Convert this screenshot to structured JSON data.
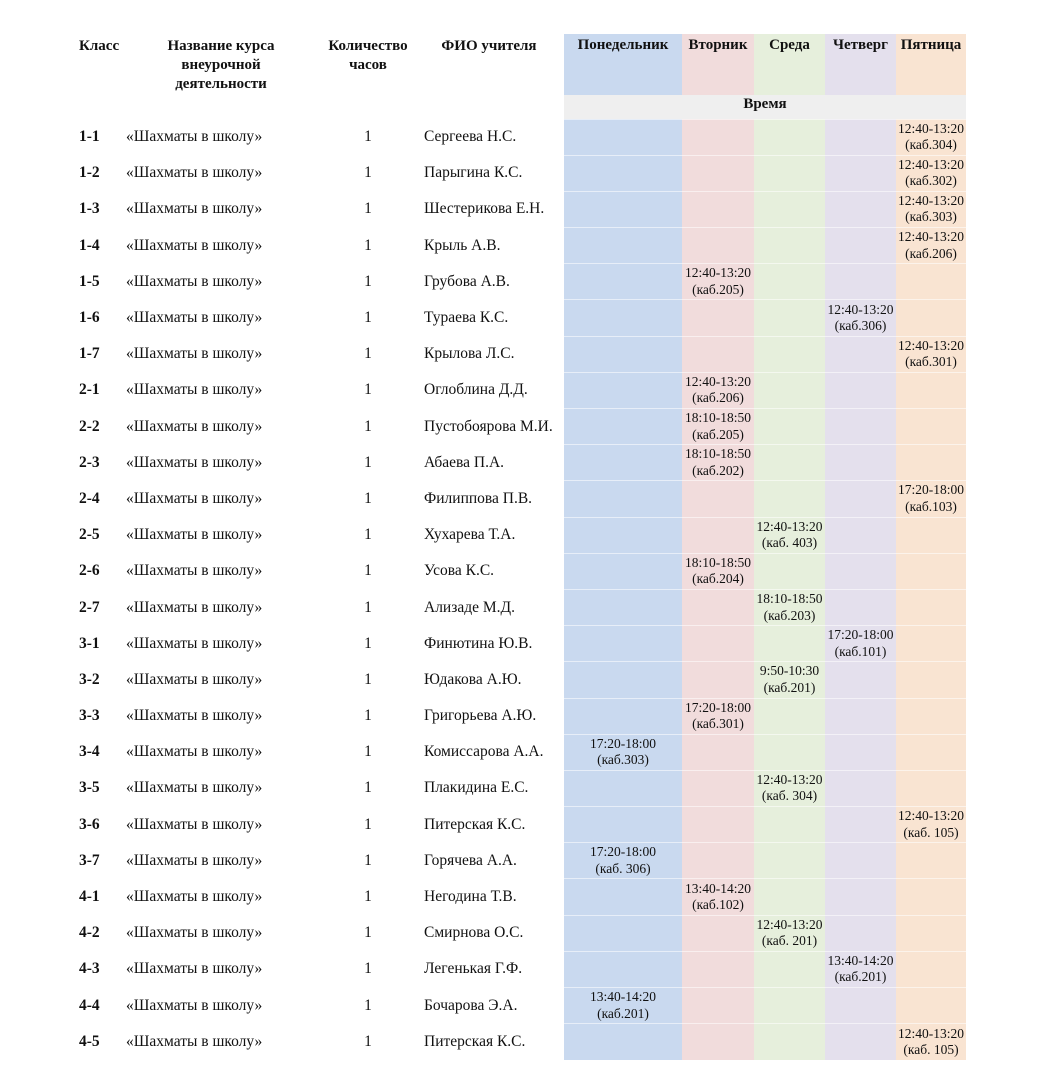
{
  "headers": {
    "class": "Класс",
    "course": [
      "Название курса",
      "внеурочной",
      "деятельности"
    ],
    "hours": [
      "Количество",
      "часов"
    ],
    "teacher": "ФИО учителя",
    "days": [
      "Понедельник",
      "Вторник",
      "Среда",
      "Четверг",
      "Пятница"
    ],
    "time": "Время"
  },
  "colors": {
    "monday": "#c9d9ef",
    "tuesday": "#f1dcdc",
    "wednesday": "#e6efdc",
    "thursday": "#e4e0ed",
    "friday": "#f9e4d2"
  },
  "rows": [
    {
      "class": "1-1",
      "course": "«Шахматы в школу»",
      "hours": "1",
      "teacher": "Сергеева Н.С.",
      "day": 4,
      "time": "12:40-13:20",
      "room": "(каб.304)"
    },
    {
      "class": "1-2",
      "course": "«Шахматы в школу»",
      "hours": "1",
      "teacher": "Парыгина К.С.",
      "day": 4,
      "time": "12:40-13:20",
      "room": "(каб.302)"
    },
    {
      "class": "1-3",
      "course": "«Шахматы в школу»",
      "hours": "1",
      "teacher": "Шестерикова Е.Н.",
      "day": 4,
      "time": "12:40-13:20",
      "room": "(каб.303)"
    },
    {
      "class": "1-4",
      "course": "«Шахматы в школу»",
      "hours": "1",
      "teacher": "Крыль А.В.",
      "day": 4,
      "time": "12:40-13:20",
      "room": "(каб.206)"
    },
    {
      "class": "1-5",
      "course": "«Шахматы в школу»",
      "hours": "1",
      "teacher": "Грубова А.В.",
      "day": 1,
      "time": "12:40-13:20",
      "room": "(каб.205)"
    },
    {
      "class": "1-6",
      "course": "«Шахматы в школу»",
      "hours": "1",
      "teacher": "Тураева К.С.",
      "day": 3,
      "time": "12:40-13:20",
      "room": "(каб.306)"
    },
    {
      "class": "1-7",
      "course": "«Шахматы в школу»",
      "hours": "1",
      "teacher": "Крылова Л.С.",
      "day": 4,
      "time": "12:40-13:20",
      "room": "(каб.301)"
    },
    {
      "class": "2-1",
      "course": "«Шахматы в школу»",
      "hours": "1",
      "teacher": "Оглоблина Д.Д.",
      "day": 1,
      "time": "12:40-13:20",
      "room": "(каб.206)"
    },
    {
      "class": "2-2",
      "course": "«Шахматы в школу»",
      "hours": "1",
      "teacher": "Пустобоярова М.И.",
      "day": 1,
      "time": "18:10-18:50",
      "room": "(каб.205)"
    },
    {
      "class": "2-3",
      "course": "«Шахматы в школу»",
      "hours": "1",
      "teacher": "Абаева П.А.",
      "day": 1,
      "time": "18:10-18:50",
      "room": "(каб.202)"
    },
    {
      "class": "2-4",
      "course": "«Шахматы в школу»",
      "hours": "1",
      "teacher": "Филиппова П.В.",
      "day": 4,
      "time": "17:20-18:00",
      "room": "(каб.103)"
    },
    {
      "class": "2-5",
      "course": "«Шахматы в школу»",
      "hours": "1",
      "teacher": "Хухарева Т.А.",
      "day": 2,
      "time": "12:40-13:20",
      "room": "(каб. 403)"
    },
    {
      "class": "2-6",
      "course": "«Шахматы в школу»",
      "hours": "1",
      "teacher": "Усова К.С.",
      "day": 1,
      "time": "18:10-18:50",
      "room": "(каб.204)"
    },
    {
      "class": "2-7",
      "course": "«Шахматы в школу»",
      "hours": "1",
      "teacher": "Ализаде М.Д.",
      "day": 2,
      "time": "18:10-18:50",
      "room": "(каб.203)"
    },
    {
      "class": "3-1",
      "course": "«Шахматы в школу»",
      "hours": "1",
      "teacher": "Финютина Ю.В.",
      "day": 3,
      "time": "17:20-18:00",
      "room": "(каб.101)"
    },
    {
      "class": "3-2",
      "course": "«Шахматы в школу»",
      "hours": "1",
      "teacher": "Юдакова А.Ю.",
      "day": 2,
      "time": "9:50-10:30",
      "room": "(каб.201)"
    },
    {
      "class": "3-3",
      "course": "«Шахматы в школу»",
      "hours": "1",
      "teacher": "Григорьева А.Ю.",
      "day": 1,
      "time": "17:20-18:00",
      "room": "(каб.301)"
    },
    {
      "class": "3-4",
      "course": "«Шахматы в школу»",
      "hours": "1",
      "teacher": "Комиссарова А.А.",
      "day": 0,
      "time": "17:20-18:00",
      "room": "(каб.303)"
    },
    {
      "class": "3-5",
      "course": "«Шахматы в школу»",
      "hours": "1",
      "teacher": "Плакидина Е.С.",
      "day": 2,
      "time": "12:40-13:20",
      "room": "(каб. 304)"
    },
    {
      "class": "3-6",
      "course": "«Шахматы в школу»",
      "hours": "1",
      "teacher": "Питерская К.С.",
      "day": 4,
      "time": "12:40-13:20",
      "room": "(каб. 105)"
    },
    {
      "class": "3-7",
      "course": "«Шахматы в школу»",
      "hours": "1",
      "teacher": "Горячева А.А.",
      "day": 0,
      "time": "17:20-18:00",
      "room": "(каб. 306)"
    },
    {
      "class": "4-1",
      "course": "«Шахматы в школу»",
      "hours": "1",
      "teacher": "Негодина Т.В.",
      "day": 1,
      "time": "13:40-14:20",
      "room": "(каб.102)"
    },
    {
      "class": "4-2",
      "course": "«Шахматы в школу»",
      "hours": "1",
      "teacher": "Смирнова О.С.",
      "day": 2,
      "time": "12:40-13:20",
      "room": "(каб. 201)"
    },
    {
      "class": "4-3",
      "course": "«Шахматы в школу»",
      "hours": "1",
      "teacher": "Легенькая Г.Ф.",
      "day": 3,
      "time": "13:40-14:20",
      "room": "(каб.201)"
    },
    {
      "class": "4-4",
      "course": "«Шахматы в школу»",
      "hours": "1",
      "teacher": "Бочарова Э.А.",
      "day": 0,
      "time": "13:40-14:20",
      "room": "(каб.201)"
    },
    {
      "class": "4-5",
      "course": "«Шахматы в школу»",
      "hours": "1",
      "teacher": "Питерская К.С.",
      "day": 4,
      "time": "12:40-13:20",
      "room": "(каб. 105)"
    }
  ]
}
